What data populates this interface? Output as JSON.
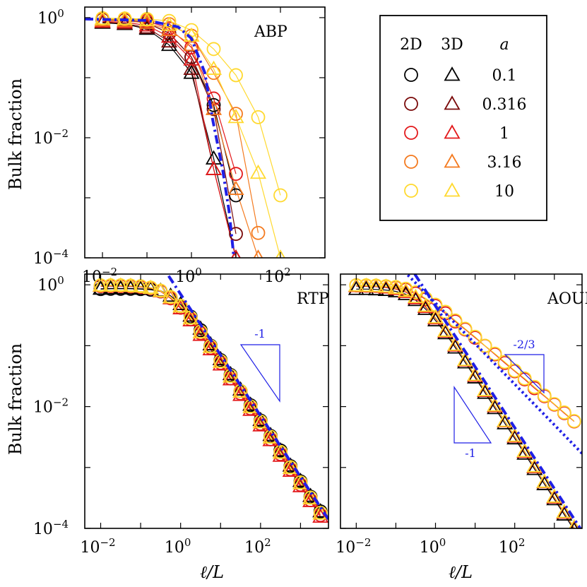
{
  "figure": {
    "ylabel": "Bulk fraction",
    "xlabel": "ℓ/L"
  },
  "legend": {
    "header": [
      "2D",
      "3D",
      "a"
    ],
    "entries": [
      {
        "a": "0.1",
        "color": "#000000"
      },
      {
        "a": "0.316",
        "color": "#7a0a0a"
      },
      {
        "a": "1",
        "color": "#e31a1c"
      },
      {
        "a": "3.16",
        "color": "#f47a1f"
      },
      {
        "a": "10",
        "color": "#ffd92f"
      }
    ]
  },
  "chart_data": [
    {
      "panel": "ABP",
      "type": "line",
      "xscale": "log",
      "yscale": "log",
      "xlim": [
        0.004,
        1000
      ],
      "ylim": [
        0.0001,
        1.5
      ],
      "ylabel": "Bulk fraction",
      "xticks": [
        "10^-2",
        "10^0",
        "10^2"
      ],
      "yticks": [
        "10^0",
        "10^-2",
        "10^-4"
      ],
      "theory": {
        "style": "dash-dot",
        "color": "#1f1fe6",
        "x": [
          0.004,
          0.1,
          0.5,
          1,
          2,
          3,
          5,
          7,
          8.5,
          10
        ],
        "y": [
          0.95,
          0.9,
          0.7,
          0.45,
          0.12,
          0.02,
          0.003,
          0.0006,
          0.00015,
          4e-05
        ]
      },
      "series": [
        {
          "name": "2D a=0.1",
          "dim": "2D",
          "a": "0.1",
          "x": [
            0.01,
            0.0316,
            0.1,
            0.316,
            1,
            3.16,
            10
          ],
          "y": [
            0.93,
            0.92,
            0.82,
            0.55,
            0.22,
            0.035,
            0.0011
          ]
        },
        {
          "name": "3D a=0.1",
          "dim": "3D",
          "a": "0.1",
          "x": [
            0.01,
            0.0316,
            0.1,
            0.316,
            1,
            3.16,
            10
          ],
          "y": [
            0.82,
            0.78,
            0.65,
            0.35,
            0.12,
            0.0045,
            0.0001
          ]
        },
        {
          "name": "2D a=0.316",
          "dim": "2D",
          "a": "0.316",
          "x": [
            0.01,
            0.0316,
            0.1,
            0.316,
            1,
            3.16,
            10
          ],
          "y": [
            0.93,
            0.92,
            0.82,
            0.55,
            0.22,
            0.03,
            0.00025
          ]
        },
        {
          "name": "3D a=0.316",
          "dim": "3D",
          "a": "0.316",
          "x": [
            0.01,
            0.0316,
            0.1,
            0.316,
            1,
            3.16,
            10
          ],
          "y": [
            0.84,
            0.8,
            0.68,
            0.4,
            0.14,
            0.003,
            0.0001
          ]
        },
        {
          "name": "2D a=1",
          "dim": "2D",
          "a": "1",
          "x": [
            0.01,
            0.0316,
            0.1,
            0.316,
            1,
            3.16,
            10
          ],
          "y": [
            0.95,
            0.94,
            0.88,
            0.66,
            0.32,
            0.045,
            0.0025
          ]
        },
        {
          "name": "3D a=1",
          "dim": "3D",
          "a": "1",
          "x": [
            0.01,
            0.0316,
            0.1,
            0.316,
            1,
            3.16,
            10
          ],
          "y": [
            0.86,
            0.84,
            0.74,
            0.48,
            0.2,
            0.003,
            0.0001
          ]
        },
        {
          "name": "2D a=3.16",
          "dim": "2D",
          "a": "3.16",
          "x": [
            0.01,
            0.0316,
            0.1,
            0.316,
            1,
            3.16,
            10,
            31.6
          ],
          "y": [
            0.96,
            0.95,
            0.92,
            0.78,
            0.5,
            0.12,
            0.025,
            0.00026
          ]
        },
        {
          "name": "3D a=3.16",
          "dim": "3D",
          "a": "3.16",
          "x": [
            0.01,
            0.0316,
            0.1,
            0.316,
            1,
            3.16,
            10,
            31.6
          ],
          "y": [
            0.9,
            0.88,
            0.82,
            0.62,
            0.35,
            0.03,
            0.0014,
            0.0001
          ]
        },
        {
          "name": "2D a=10",
          "dim": "2D",
          "a": "10",
          "x": [
            0.01,
            0.0316,
            0.1,
            0.316,
            1,
            3.16,
            10,
            31.6,
            100
          ],
          "y": [
            0.98,
            0.97,
            0.95,
            0.88,
            0.62,
            0.3,
            0.11,
            0.022,
            0.0011
          ]
        },
        {
          "name": "3D a=10",
          "dim": "3D",
          "a": "10",
          "x": [
            0.01,
            0.0316,
            0.1,
            0.316,
            1,
            3.16,
            10,
            31.6,
            100
          ],
          "y": [
            0.95,
            0.94,
            0.9,
            0.76,
            0.5,
            0.14,
            0.022,
            0.0026,
            0.0001
          ]
        }
      ]
    },
    {
      "panel": "RTP",
      "type": "line",
      "xscale": "log",
      "yscale": "log",
      "xlim": [
        0.004,
        5000
      ],
      "ylim": [
        0.0001,
        1.5
      ],
      "ylabel": "Bulk fraction",
      "xlabel": "ℓ/L",
      "xticks": [
        "10^-2",
        "10^0",
        "10^2"
      ],
      "yticks": [
        "10^0",
        "10^-2",
        "10^-4"
      ],
      "slope_triangle": {
        "label": "-1",
        "slope": -1
      },
      "theory": {
        "style": "dash-dot",
        "color": "#1f1fe6",
        "x": [
          0.5,
          1,
          10,
          100,
          1000,
          5000
        ],
        "y": [
          1.4,
          0.7,
          0.07,
          0.007,
          0.0007,
          0.00014
        ]
      },
      "series": [
        {
          "name": "2D a=0.1",
          "dim": "2D",
          "a": "0.1",
          "x": [
            0.01,
            0.0178,
            0.0316,
            0.0562,
            0.1,
            0.178,
            0.316,
            0.562,
            1,
            1.78,
            3.16,
            5.62,
            10,
            17.8,
            31.6,
            56.2,
            100,
            178,
            316,
            562,
            1000,
            1780,
            3160
          ],
          "y": [
            0.85,
            0.86,
            0.86,
            0.86,
            0.85,
            0.83,
            0.78,
            0.62,
            0.45,
            0.3,
            0.18,
            0.1,
            0.058,
            0.033,
            0.018,
            0.0105,
            0.0059,
            0.0033,
            0.0019,
            0.00105,
            0.00059,
            0.00033,
            0.00019
          ]
        },
        {
          "name": "3D a=0.1",
          "dim": "3D",
          "a": "0.1",
          "x": [
            0.01,
            0.0178,
            0.0316,
            0.0562,
            0.1,
            0.178,
            0.316,
            0.562,
            1,
            1.78,
            3.16,
            5.62,
            10,
            17.8,
            31.6,
            56.2,
            100,
            178,
            316,
            562,
            1000,
            1780,
            3160
          ],
          "y": [
            0.86,
            0.87,
            0.87,
            0.87,
            0.86,
            0.85,
            0.8,
            0.66,
            0.48,
            0.31,
            0.19,
            0.105,
            0.06,
            0.034,
            0.019,
            0.0107,
            0.006,
            0.0034,
            0.0019,
            0.00107,
            0.0006,
            0.00034,
            0.00019
          ]
        },
        {
          "name": "2D a=1",
          "dim": "2D",
          "a": "1",
          "x": [
            0.01,
            0.0178,
            0.0316,
            0.0562,
            0.1,
            0.178,
            0.316,
            0.562,
            1,
            1.78,
            3.16,
            5.62,
            10,
            17.8,
            31.6,
            56.2,
            100,
            178,
            316,
            562,
            1000,
            1780,
            3160
          ],
          "y": [
            0.95,
            0.95,
            0.95,
            0.94,
            0.92,
            0.88,
            0.78,
            0.6,
            0.42,
            0.27,
            0.16,
            0.092,
            0.052,
            0.029,
            0.0165,
            0.0093,
            0.0052,
            0.0029,
            0.00165,
            0.00093,
            0.00052,
            0.00029,
            0.000165
          ]
        },
        {
          "name": "3D a=1",
          "dim": "3D",
          "a": "1",
          "x": [
            0.01,
            0.0178,
            0.0316,
            0.0562,
            0.1,
            0.178,
            0.316,
            0.562,
            1,
            1.78,
            3.16,
            5.62,
            10,
            17.8,
            31.6,
            56.2,
            100,
            178,
            316,
            562,
            1000,
            1780,
            3160
          ],
          "y": [
            0.96,
            0.96,
            0.96,
            0.95,
            0.93,
            0.88,
            0.78,
            0.6,
            0.41,
            0.26,
            0.15,
            0.087,
            0.049,
            0.028,
            0.0155,
            0.0088,
            0.0049,
            0.0028,
            0.00155,
            0.00088,
            0.00049,
            0.00028,
            0.000155
          ]
        },
        {
          "name": "2D a=10",
          "dim": "2D",
          "a": "10",
          "x": [
            0.01,
            0.0178,
            0.0316,
            0.0562,
            0.1,
            0.178,
            0.316,
            0.562,
            1,
            1.78,
            3.16,
            5.62,
            10,
            17.8,
            31.6,
            56.2,
            100,
            178,
            316,
            562,
            1000,
            1780,
            3160
          ],
          "y": [
            0.98,
            0.98,
            0.98,
            0.97,
            0.95,
            0.9,
            0.8,
            0.63,
            0.45,
            0.29,
            0.17,
            0.098,
            0.056,
            0.032,
            0.018,
            0.0101,
            0.0057,
            0.0032,
            0.0018,
            0.00101,
            0.00057,
            0.00032,
            0.00018
          ]
        },
        {
          "name": "3D a=10",
          "dim": "3D",
          "a": "10",
          "x": [
            0.01,
            0.0178,
            0.0316,
            0.0562,
            0.1,
            0.178,
            0.316,
            0.562,
            1,
            1.78,
            3.16,
            5.62,
            10,
            17.8,
            31.6,
            56.2,
            100,
            178,
            316,
            562,
            1000,
            1780,
            3160
          ],
          "y": [
            0.97,
            0.97,
            0.97,
            0.96,
            0.94,
            0.89,
            0.79,
            0.62,
            0.44,
            0.28,
            0.165,
            0.095,
            0.054,
            0.031,
            0.0175,
            0.0098,
            0.0055,
            0.0031,
            0.00175,
            0.00098,
            0.00055,
            0.00031,
            0.000175
          ]
        }
      ]
    },
    {
      "panel": "AOUP",
      "type": "line",
      "xscale": "log",
      "yscale": "log",
      "xlim": [
        0.004,
        5000
      ],
      "ylim": [
        0.0001,
        1.5
      ],
      "xlabel": "ℓ/L",
      "xticks": [
        "10^-2",
        "10^0",
        "10^2"
      ],
      "slope_triangles": [
        {
          "label": "-1",
          "slope": -1
        },
        {
          "label": "-2/3",
          "slope": -0.667
        }
      ],
      "theory": [
        {
          "style": "dash-dot",
          "color": "#1f1fe6",
          "x": [
            0.3,
            1,
            10,
            100,
            1000,
            5000
          ],
          "y": [
            1.5,
            0.45,
            0.045,
            0.0045,
            0.00045,
            9e-05
          ]
        },
        {
          "style": "dotted",
          "color": "#1f1fe6",
          "x": [
            0.2,
            1,
            10,
            100,
            1000,
            5000
          ],
          "y": [
            1.45,
            0.5,
            0.108,
            0.0233,
            0.005,
            0.0017
          ]
        }
      ],
      "series": [
        {
          "name": "2D a=1",
          "dim": "2D",
          "a": "1",
          "x": [
            0.01,
            0.0178,
            0.0316,
            0.0562,
            0.1,
            0.178,
            0.316,
            0.562,
            1,
            1.78,
            3.16,
            5.62,
            10,
            17.8,
            31.6,
            56.2,
            100,
            178,
            316,
            562,
            1000,
            1780,
            3160
          ],
          "y": [
            0.98,
            0.97,
            0.96,
            0.94,
            0.9,
            0.83,
            0.72,
            0.58,
            0.45,
            0.34,
            0.25,
            0.185,
            0.135,
            0.099,
            0.072,
            0.052,
            0.038,
            0.028,
            0.02,
            0.0148,
            0.0108,
            0.0078,
            0.0057
          ]
        },
        {
          "name": "2D a=10",
          "dim": "2D",
          "a": "10",
          "x": [
            0.01,
            0.0178,
            0.0316,
            0.0562,
            0.1,
            0.178,
            0.316,
            0.562,
            1,
            1.78,
            3.16,
            5.62,
            10,
            17.8,
            31.6,
            56.2,
            100,
            178,
            316,
            562,
            1000,
            1780,
            3160
          ],
          "y": [
            0.98,
            0.98,
            0.97,
            0.95,
            0.92,
            0.86,
            0.75,
            0.6,
            0.47,
            0.36,
            0.26,
            0.19,
            0.14,
            0.1,
            0.074,
            0.054,
            0.039,
            0.029,
            0.021,
            0.0152,
            0.011,
            0.008,
            0.0058
          ]
        },
        {
          "name": "3D a=0.1",
          "dim": "3D",
          "a": "0.1",
          "x": [
            0.01,
            0.0178,
            0.0316,
            0.0562,
            0.1,
            0.178,
            0.316,
            0.562,
            1,
            1.78,
            3.16,
            5.62,
            10,
            17.8,
            31.6,
            56.2,
            100,
            178,
            316,
            562,
            1000,
            1780,
            3160
          ],
          "y": [
            0.85,
            0.85,
            0.84,
            0.82,
            0.78,
            0.7,
            0.56,
            0.4,
            0.26,
            0.16,
            0.093,
            0.053,
            0.03,
            0.0168,
            0.0094,
            0.0053,
            0.003,
            0.00168,
            0.00094,
            0.00053,
            0.0003,
            0.000168,
            9.4e-05
          ]
        },
        {
          "name": "3D a=1",
          "dim": "3D",
          "a": "1",
          "x": [
            0.01,
            0.0178,
            0.0316,
            0.0562,
            0.1,
            0.178,
            0.316,
            0.562,
            1,
            1.78,
            3.16,
            5.62,
            10,
            17.8,
            31.6,
            56.2,
            100,
            178,
            316,
            562,
            1000,
            1780,
            3160
          ],
          "y": [
            0.95,
            0.94,
            0.93,
            0.9,
            0.85,
            0.76,
            0.6,
            0.43,
            0.28,
            0.17,
            0.1,
            0.057,
            0.032,
            0.018,
            0.0101,
            0.0057,
            0.0032,
            0.0018,
            0.00101,
            0.00057,
            0.00032,
            0.00018,
            0.000101
          ]
        },
        {
          "name": "3D a=10",
          "dim": "3D",
          "a": "10",
          "x": [
            0.01,
            0.0178,
            0.0316,
            0.0562,
            0.1,
            0.178,
            0.316,
            0.562,
            1,
            1.78,
            3.16,
            5.62,
            10,
            17.8,
            31.6,
            56.2,
            100,
            178,
            316,
            562,
            1000,
            1780,
            3160
          ],
          "y": [
            0.97,
            0.96,
            0.95,
            0.93,
            0.88,
            0.79,
            0.63,
            0.45,
            0.29,
            0.175,
            0.103,
            0.058,
            0.033,
            0.0185,
            0.0104,
            0.0058,
            0.0033,
            0.00185,
            0.00104,
            0.00058,
            0.00033,
            0.000185,
            0.000104
          ]
        }
      ]
    }
  ]
}
